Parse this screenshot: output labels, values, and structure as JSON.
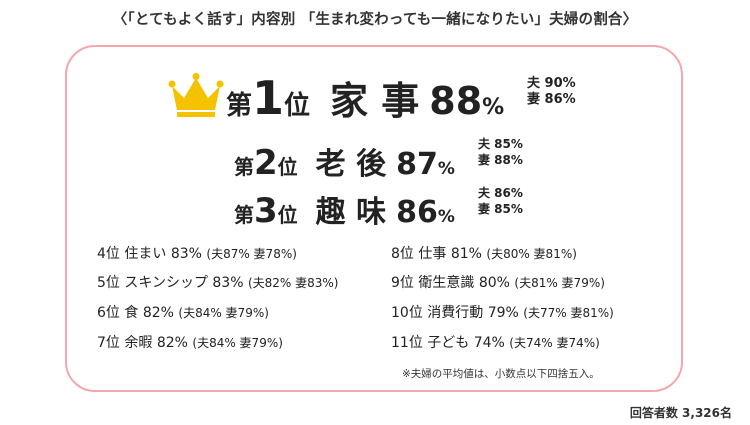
{
  "title": "〈「とてもよく話す」内容別 「生まれ変わっても一緒になりたい」夫婦の割合〉",
  "chart_data": {
    "type": "table",
    "title": "〈「とてもよく話す」内容別 「生まれ変わっても一緒になりたい」夫婦の割合〉",
    "rows": [
      {
        "rank_label": "1位",
        "rank": 1,
        "category": "家事",
        "value": 88,
        "husband": 90,
        "wife": 86
      },
      {
        "rank_label": "2位",
        "rank": 2,
        "category": "老後",
        "value": 87,
        "husband": 85,
        "wife": 88
      },
      {
        "rank_label": "3位",
        "rank": 3,
        "category": "趣味",
        "value": 86,
        "husband": 86,
        "wife": 85
      },
      {
        "rank_label": "4位",
        "rank": 4,
        "category": "住まい",
        "value": 83,
        "husband": 87,
        "wife": 78
      },
      {
        "rank_label": "5位",
        "rank": 5,
        "category": "スキンシップ",
        "value": 83,
        "husband": 82,
        "wife": 83
      },
      {
        "rank_label": "6位",
        "rank": 6,
        "category": "食",
        "value": 82,
        "husband": 84,
        "wife": 79
      },
      {
        "rank_label": "7位",
        "rank": 7,
        "category": "余暇",
        "value": 82,
        "husband": 84,
        "wife": 79
      },
      {
        "rank_label": "8位",
        "rank": 8,
        "category": "仕事",
        "value": 81,
        "husband": 80,
        "wife": 81
      },
      {
        "rank_label": "9位",
        "rank": 9,
        "category": "衛生意識",
        "value": 80,
        "husband": 81,
        "wife": 79
      },
      {
        "rank_label": "10位",
        "rank": 10,
        "category": "消費行動",
        "value": 79,
        "husband": 77,
        "wife": 81
      },
      {
        "rank_label": "11位",
        "rank": 11,
        "category": "子ども",
        "value": 74,
        "husband": 74,
        "wife": 74
      }
    ],
    "unit": "%",
    "husband_label": "夫",
    "wife_label": "妻"
  },
  "top_prefix": "第",
  "top_suffix": "位",
  "note": "※夫婦の平均値は、小数点以下四捨五入。",
  "respondents": "回答者数 3,326名",
  "colors": {
    "border": "#f4a7ad",
    "crown": "#f5c200",
    "text": "#222222"
  }
}
